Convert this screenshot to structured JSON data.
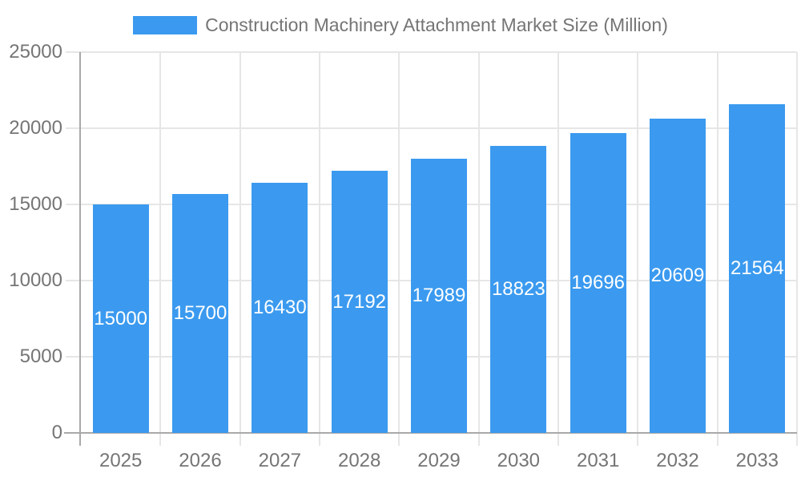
{
  "chart_data": {
    "type": "bar",
    "title": "Construction Machinery Attachment Market Size (Million)",
    "legend": {
      "label": "Construction Machinery Attachment Market Size (Million)",
      "position": "top"
    },
    "categories": [
      "2025",
      "2026",
      "2027",
      "2028",
      "2029",
      "2030",
      "2031",
      "2032",
      "2033"
    ],
    "values": [
      15000,
      15700,
      16430,
      17192,
      17989,
      18823,
      19696,
      20609,
      21564
    ],
    "xlabel": "",
    "ylabel": "",
    "ylim": [
      0,
      25000
    ],
    "yticks": [
      0,
      5000,
      10000,
      15000,
      20000,
      25000
    ],
    "grid": true,
    "value_labels": "inside-center",
    "colors": {
      "bar": "#3b9aef",
      "value_label": "#ffffff",
      "axis_line": "#a9a9a9",
      "gridline": "#e6e6e6",
      "tick_label": "#757575",
      "legend_text": "#757575",
      "background": "#ffffff"
    }
  }
}
